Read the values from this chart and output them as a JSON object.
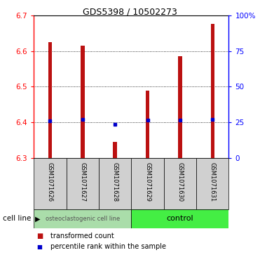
{
  "title": "GDS5398 / 10502273",
  "samples": [
    "GSM1071626",
    "GSM1071627",
    "GSM1071628",
    "GSM1071629",
    "GSM1071630",
    "GSM1071631"
  ],
  "transformed_counts": [
    6.625,
    6.615,
    6.345,
    6.49,
    6.585,
    6.675
  ],
  "percentile_ranks": [
    6.405,
    6.408,
    6.395,
    6.406,
    6.407,
    6.408
  ],
  "ylim": [
    6.3,
    6.7
  ],
  "yticks_left": [
    6.3,
    6.4,
    6.5,
    6.6,
    6.7
  ],
  "yticks_right": [
    0,
    25,
    50,
    75,
    100
  ],
  "yticks_right_labels": [
    "0",
    "25",
    "50",
    "75",
    "100%"
  ],
  "bar_bottom": 6.3,
  "bar_color": "#bb1111",
  "percentile_color": "#0000cc",
  "group1_color": "#aaddaa",
  "group2_color": "#44ee44",
  "label_area_color": "#d0d0d0",
  "figsize": [
    3.71,
    3.63
  ],
  "dpi": 100,
  "group1_label": "osteoclastogenic cell line",
  "group2_label": "control",
  "cell_line_text": "cell line",
  "legend_label1": "transformed count",
  "legend_label2": "percentile rank within the sample"
}
